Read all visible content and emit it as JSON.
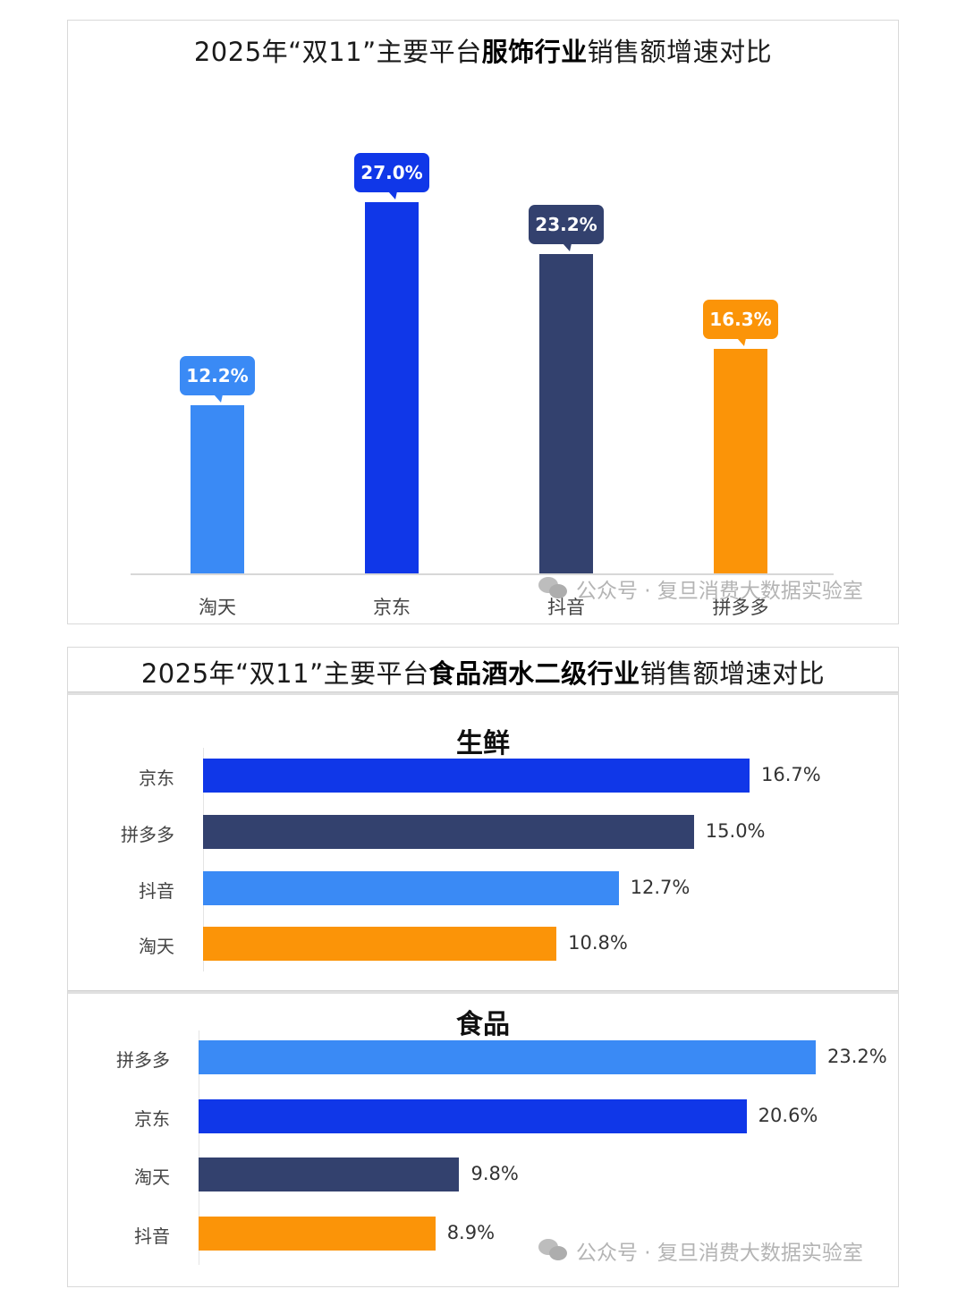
{
  "chart_data": [
    {
      "type": "bar",
      "orientation": "vertical",
      "title": "2025年“双11”主要平台服饰行业销售额增速对比",
      "title_parts": {
        "prefix": "2025年“双11”主要平台",
        "bold": "服饰行业",
        "suffix": "销售额增速对比"
      },
      "categories": [
        "淘天",
        "京东",
        "抖音",
        "拼多多"
      ],
      "values": [
        12.2,
        27.0,
        23.2,
        16.3
      ],
      "labels": [
        "12.2%",
        "27.0%",
        "23.2%",
        "16.3%"
      ],
      "colors": [
        "#3a8af5",
        "#1037e8",
        "#33416e",
        "#fb9408"
      ],
      "xlabel": "",
      "ylabel": "",
      "ylim": [
        0,
        30
      ],
      "grid": false,
      "legend": "none"
    },
    {
      "type": "bar",
      "orientation": "horizontal",
      "title": "2025年“双11”主要平台食品酒水二级行业销售额增速对比",
      "title_parts": {
        "prefix": "2025年“双11”主要平台",
        "bold": "食品酒水二级行业",
        "suffix": "销售额增速对比"
      },
      "subcharts": [
        {
          "subtitle": "生鲜",
          "categories": [
            "京东",
            "拼多多",
            "抖音",
            "淘天"
          ],
          "values": [
            16.7,
            15.0,
            12.7,
            10.8
          ],
          "labels": [
            "16.7%",
            "15.0%",
            "12.7%",
            "10.8%"
          ],
          "colors": [
            "#1037e8",
            "#33416e",
            "#3a8af5",
            "#fb9408"
          ]
        },
        {
          "subtitle": "食品",
          "categories": [
            "拼多多",
            "京东",
            "淘天",
            "抖音"
          ],
          "values": [
            23.2,
            20.6,
            9.8,
            8.9
          ],
          "labels": [
            "23.2%",
            "20.6%",
            "9.8%",
            "8.9%"
          ],
          "colors": [
            "#3a8af5",
            "#1037e8",
            "#33416e",
            "#fb9408"
          ]
        }
      ],
      "grid": false,
      "legend": "none"
    }
  ],
  "watermark": {
    "icon": "wechat-icon",
    "text": "公众号 · 复旦消费大数据实验室"
  }
}
